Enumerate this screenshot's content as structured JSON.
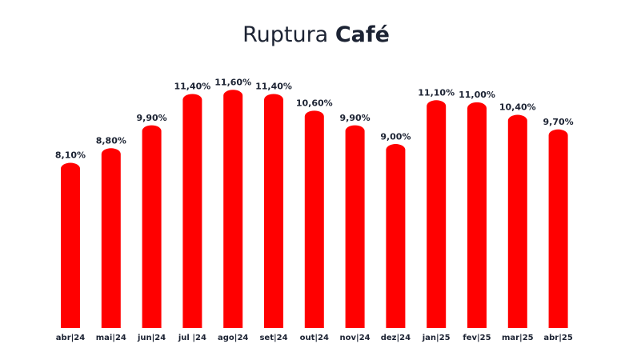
{
  "chart_data": {
    "type": "bar",
    "title": [
      "Ruptura",
      "Café"
    ],
    "categories": [
      "abr|24",
      "mai|24",
      "jun|24",
      "jul |24",
      "ago|24",
      "set|24",
      "out|24",
      "nov|24",
      "dez|24",
      "jan|25",
      "fev|25",
      "mar|25",
      "abr|25"
    ],
    "values": [
      8.1,
      8.8,
      9.9,
      11.4,
      11.6,
      11.4,
      10.6,
      9.9,
      9.0,
      11.1,
      11.0,
      10.4,
      9.7
    ],
    "value_labels": [
      "8,10%",
      "8,80%",
      "9,90%",
      "11,40%",
      "11,60%",
      "11,40%",
      "10,60%",
      "9,90%",
      "9,00%",
      "11,10%",
      "11,00%",
      "10,40%",
      "9,70%"
    ],
    "color": "#ff0000",
    "ylim": [
      0,
      12
    ]
  }
}
